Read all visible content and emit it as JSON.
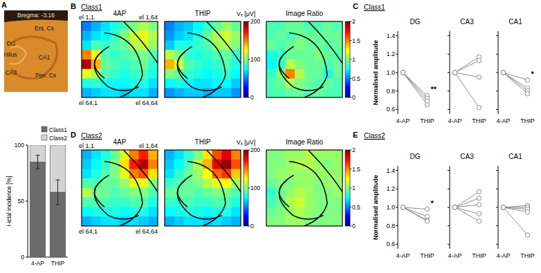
{
  "figure": {
    "letters": [
      "A",
      "B",
      "C",
      "D",
      "E"
    ],
    "headings": [
      "Class1",
      "Class1",
      "Class2",
      "Class2"
    ]
  },
  "photo": {
    "labels": [
      "Bregma: -3.16",
      "Ent. Cx",
      "DG",
      "Hilus",
      "CA1",
      "CA3",
      "Peri. Cx"
    ]
  },
  "chart_data": [
    {
      "type": "bar",
      "stacked": true,
      "categories": [
        "4-AP",
        "THIP"
      ],
      "series": [
        {
          "name": "Class1",
          "color": "#6b6b6b",
          "values": [
            85,
            58
          ],
          "errors": [
            6,
            11
          ]
        },
        {
          "name": "Class2",
          "color": "#d4d4d4",
          "values": [
            15,
            42
          ]
        }
      ],
      "y_label": "I-ictal incidence [%]",
      "ylim": [
        0,
        100
      ],
      "yticks": [
        0,
        50,
        100
      ],
      "legend": "top-right"
    },
    {
      "type": "heatmap",
      "title": "4AP",
      "corner_labels": [
        "el 1,1",
        "el 1,64",
        "el 64,1",
        "el 64,64"
      ],
      "zlim": [
        0,
        200
      ],
      "cells": [
        [
          50,
          60,
          70,
          80,
          90,
          100,
          110,
          100
        ],
        [
          60,
          70,
          75,
          85,
          100,
          115,
          120,
          110
        ],
        [
          70,
          90,
          85,
          90,
          95,
          110,
          115,
          105
        ],
        [
          150,
          120,
          90,
          85,
          90,
          95,
          100,
          90
        ],
        [
          190,
          140,
          95,
          90,
          85,
          90,
          95,
          85
        ],
        [
          120,
          110,
          90,
          85,
          80,
          85,
          90,
          80
        ],
        [
          80,
          85,
          80,
          75,
          75,
          80,
          80,
          70
        ],
        [
          60,
          65,
          70,
          70,
          65,
          70,
          70,
          60
        ]
      ]
    },
    {
      "type": "heatmap",
      "title": "THIP",
      "zlim": [
        0,
        200
      ],
      "zticks": [
        0,
        100,
        200
      ],
      "z_label": "Vₓ [μV]",
      "cells": [
        [
          50,
          60,
          65,
          75,
          85,
          95,
          105,
          95
        ],
        [
          55,
          65,
          70,
          80,
          95,
          110,
          115,
          105
        ],
        [
          65,
          80,
          80,
          85,
          90,
          105,
          110,
          100
        ],
        [
          110,
          100,
          85,
          80,
          85,
          90,
          95,
          85
        ],
        [
          140,
          115,
          90,
          85,
          80,
          85,
          90,
          80
        ],
        [
          100,
          95,
          85,
          80,
          75,
          80,
          85,
          75
        ],
        [
          75,
          80,
          75,
          70,
          70,
          75,
          75,
          65
        ],
        [
          55,
          60,
          65,
          65,
          60,
          65,
          65,
          55
        ]
      ]
    },
    {
      "type": "heatmap",
      "title": "Image Ratio",
      "zlim": [
        0,
        2
      ],
      "zticks": [
        0,
        0.5,
        1,
        1.5,
        2
      ],
      "cells": [
        [
          0.9,
          0.9,
          0.95,
          0.95,
          0.9,
          0.9,
          0.95,
          0.9
        ],
        [
          0.9,
          0.95,
          0.9,
          0.95,
          0.95,
          0.95,
          0.95,
          0.95
        ],
        [
          0.95,
          0.9,
          0.95,
          1.0,
          0.95,
          0.95,
          0.9,
          0.95
        ],
        [
          0.8,
          0.85,
          0.95,
          0.95,
          0.95,
          1.0,
          0.95,
          0.9
        ],
        [
          0.75,
          0.85,
          1.1,
          1.0,
          0.95,
          0.95,
          0.9,
          0.95
        ],
        [
          0.85,
          1.0,
          1.5,
          1.1,
          0.95,
          0.95,
          0.8,
          0.95
        ],
        [
          0.9,
          0.95,
          1.1,
          1.0,
          0.95,
          0.9,
          0.95,
          0.9
        ],
        [
          0.9,
          0.9,
          0.95,
          0.95,
          0.9,
          0.95,
          0.9,
          0.9
        ]
      ]
    },
    {
      "type": "heatmap",
      "title": "4AP",
      "corner_labels": [
        "el 1,1",
        "el 1,64",
        "el 64,1",
        "el 64,64"
      ],
      "zlim": [
        0,
        200
      ],
      "cells": [
        [
          60,
          70,
          80,
          95,
          120,
          150,
          170,
          140
        ],
        [
          65,
          75,
          85,
          100,
          130,
          170,
          190,
          150
        ],
        [
          70,
          80,
          90,
          100,
          120,
          150,
          160,
          130
        ],
        [
          90,
          90,
          95,
          95,
          105,
          120,
          120,
          100
        ],
        [
          110,
          100,
          95,
          90,
          95,
          100,
          100,
          90
        ],
        [
          90,
          90,
          90,
          85,
          85,
          90,
          90,
          80
        ],
        [
          75,
          80,
          80,
          80,
          75,
          80,
          80,
          70
        ],
        [
          60,
          65,
          70,
          70,
          65,
          70,
          65,
          60
        ]
      ]
    },
    {
      "type": "heatmap",
      "title": "THIP",
      "zlim": [
        0,
        200
      ],
      "zticks": [
        0,
        100,
        200
      ],
      "z_label": "Vₓ [μV]",
      "cells": [
        [
          60,
          70,
          85,
          100,
          130,
          160,
          180,
          150
        ],
        [
          65,
          75,
          90,
          110,
          140,
          180,
          195,
          160
        ],
        [
          70,
          85,
          95,
          105,
          125,
          155,
          165,
          135
        ],
        [
          85,
          90,
          95,
          100,
          110,
          120,
          125,
          105
        ],
        [
          95,
          95,
          95,
          90,
          95,
          100,
          100,
          90
        ],
        [
          85,
          85,
          90,
          85,
          85,
          90,
          90,
          80
        ],
        [
          75,
          80,
          80,
          80,
          75,
          80,
          80,
          70
        ],
        [
          60,
          65,
          70,
          70,
          65,
          70,
          65,
          60
        ]
      ]
    },
    {
      "type": "heatmap",
      "title": "Image Ratio",
      "zlim": [
        0,
        2
      ],
      "zticks": [
        0,
        0.5,
        1,
        1.5,
        2
      ],
      "cells": [
        [
          1.0,
          1.0,
          1.05,
          1.05,
          1.1,
          1.05,
          1.05,
          1.05
        ],
        [
          1.0,
          1.0,
          1.05,
          1.1,
          1.1,
          1.05,
          1.0,
          1.05
        ],
        [
          1.0,
          1.05,
          1.05,
          1.05,
          1.05,
          1.05,
          1.05,
          1.05
        ],
        [
          0.95,
          1.0,
          1.0,
          1.05,
          1.05,
          1.0,
          1.05,
          1.05
        ],
        [
          0.85,
          0.95,
          1.05,
          1.1,
          1.05,
          1.0,
          1.0,
          1.05
        ],
        [
          0.9,
          0.95,
          1.1,
          1.15,
          1.05,
          1.0,
          1.0,
          1.0
        ],
        [
          0.95,
          1.0,
          1.05,
          1.1,
          1.05,
          1.0,
          1.0,
          1.0
        ],
        [
          1.0,
          1.0,
          1.05,
          1.05,
          1.0,
          1.0,
          1.0,
          1.0
        ]
      ]
    },
    {
      "type": "line",
      "title": "DG",
      "categories": [
        "4-AP",
        "THIP"
      ],
      "color": "#8c8c8c",
      "marker": "circle",
      "series": [
        {
          "values": [
            1,
            0.75
          ]
        },
        {
          "values": [
            1,
            0.72
          ]
        },
        {
          "values": [
            1,
            0.69
          ]
        },
        {
          "values": [
            1,
            0.65
          ]
        }
      ],
      "y_label": "Normalised amplitude",
      "ylim": [
        0.55,
        1.45
      ],
      "yticks": [
        0.6,
        0.8,
        {
          "value": 1,
          "label": "1.0"
        },
        1.2,
        1.4
      ],
      "annotations": [
        "**"
      ]
    },
    {
      "type": "line",
      "title": "CA3",
      "categories": [
        "4-AP",
        "THIP"
      ],
      "color": "#8c8c8c",
      "marker": "circle",
      "series": [
        {
          "values": [
            1,
            1.17
          ]
        },
        {
          "values": [
            1,
            1.13
          ]
        },
        {
          "values": [
            1,
            0.95
          ]
        },
        {
          "values": [
            1,
            0.62
          ]
        }
      ],
      "ylim": [
        0.55,
        1.45
      ],
      "yticks": [
        0.6,
        0.8,
        {
          "value": 1,
          "label": "1.0"
        },
        1.2,
        1.4
      ],
      "tick_labels": "x"
    },
    {
      "type": "line",
      "title": "CA1",
      "categories": [
        "4-AP",
        "THIP"
      ],
      "color": "#8c8c8c",
      "marker": "circle",
      "series": [
        {
          "values": [
            1,
            0.92
          ]
        },
        {
          "values": [
            1,
            0.83
          ]
        },
        {
          "values": [
            1,
            0.8
          ]
        },
        {
          "values": [
            1,
            0.77
          ]
        }
      ],
      "ylim": [
        0.55,
        1.45
      ],
      "yticks": [
        0.6,
        0.8,
        {
          "value": 1,
          "label": "1.0"
        },
        1.2,
        1.4
      ],
      "tick_labels": "x",
      "annotations": [
        "*"
      ]
    },
    {
      "type": "line",
      "title": "DG",
      "categories": [
        "4-AP",
        "THIP"
      ],
      "color": "#8c8c8c",
      "marker": "circle",
      "series": [
        {
          "values": [
            1,
            0.98
          ]
        },
        {
          "values": [
            1,
            0.9
          ]
        },
        {
          "values": [
            1,
            0.86
          ]
        },
        {
          "values": [
            1,
            0.85
          ]
        }
      ],
      "y_label": "Normalised amplitude",
      "ylim": [
        0.55,
        1.45
      ],
      "yticks": [
        0.6,
        0.8,
        {
          "value": 1,
          "label": "1.0"
        },
        1.2,
        1.4
      ],
      "annotations": [
        "*"
      ]
    },
    {
      "type": "line",
      "title": "CA3",
      "categories": [
        "4-AP",
        "THIP"
      ],
      "color": "#8c8c8c",
      "marker": "circle",
      "series": [
        {
          "values": [
            1,
            1.17
          ]
        },
        {
          "values": [
            1,
            1.1
          ]
        },
        {
          "values": [
            1,
            1.03
          ]
        },
        {
          "values": [
            1,
            0.93
          ]
        },
        {
          "values": [
            1,
            0.85
          ]
        }
      ],
      "ylim": [
        0.55,
        1.45
      ],
      "yticks": [
        0.6,
        0.8,
        {
          "value": 1,
          "label": "1.0"
        },
        1.2,
        1.4
      ],
      "tick_labels": "x"
    },
    {
      "type": "line",
      "title": "CA1",
      "categories": [
        "4-AP",
        "THIP"
      ],
      "color": "#8c8c8c",
      "marker": "circle",
      "series": [
        {
          "values": [
            1,
            1.02
          ]
        },
        {
          "values": [
            1,
            1.0
          ]
        },
        {
          "values": [
            1,
            0.98
          ]
        },
        {
          "values": [
            1,
            0.95
          ]
        },
        {
          "values": [
            1,
            0.7
          ]
        }
      ],
      "ylim": [
        0.55,
        1.45
      ],
      "yticks": [
        0.6,
        0.8,
        {
          "value": 1,
          "label": "1.0"
        },
        1.2,
        1.4
      ],
      "tick_labels": "x"
    }
  ]
}
